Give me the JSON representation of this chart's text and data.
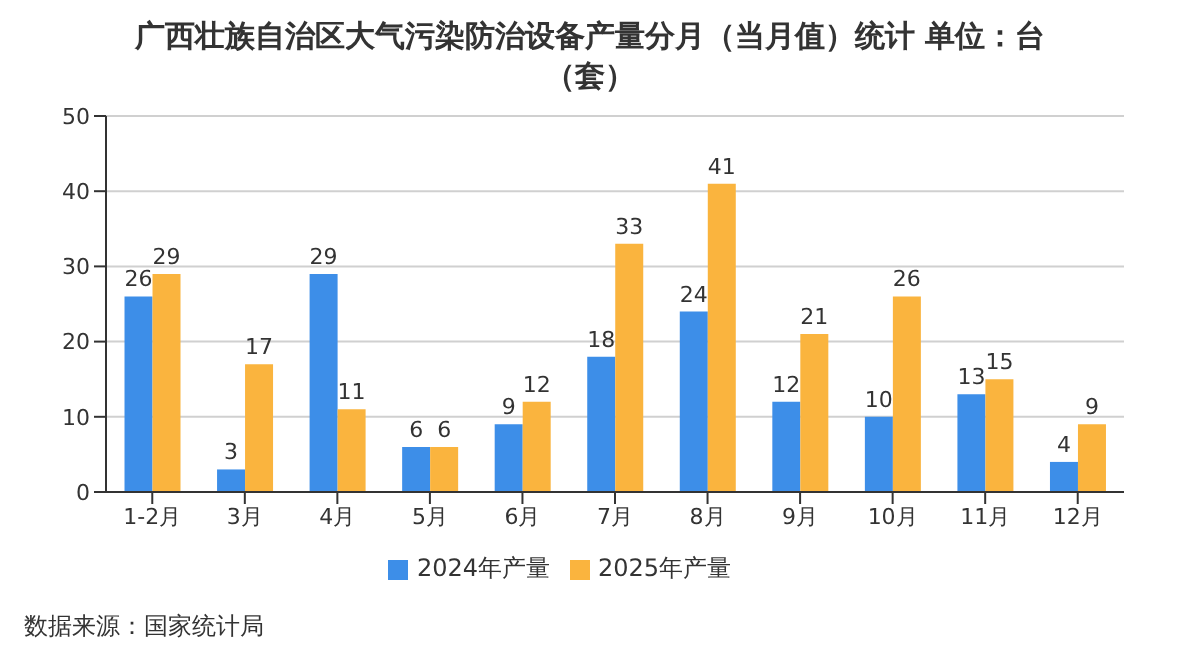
{
  "chart_data": {
    "type": "bar",
    "title": "广西壮族自治区大气污染防治设备产量分月（当月值）统计 单位：台（套）",
    "categories": [
      "1-2月",
      "3月",
      "4月",
      "5月",
      "6月",
      "7月",
      "8月",
      "9月",
      "10月",
      "11月",
      "12月"
    ],
    "series": [
      {
        "name": "2024年产量",
        "color": "#3d8ee8",
        "values": [
          26,
          3,
          29,
          6,
          9,
          18,
          24,
          12,
          10,
          13,
          4
        ]
      },
      {
        "name": "2025年产量",
        "color": "#fab43e",
        "values": [
          29,
          17,
          11,
          6,
          12,
          33,
          41,
          21,
          26,
          15,
          9
        ]
      }
    ],
    "ylim": [
      0,
      50
    ],
    "yticks": [
      0,
      10,
      20,
      30,
      40,
      50
    ],
    "grid": "y",
    "legend": "bottom",
    "data_labels": true,
    "annotations": [
      "数据来源：国家统计局"
    ]
  }
}
